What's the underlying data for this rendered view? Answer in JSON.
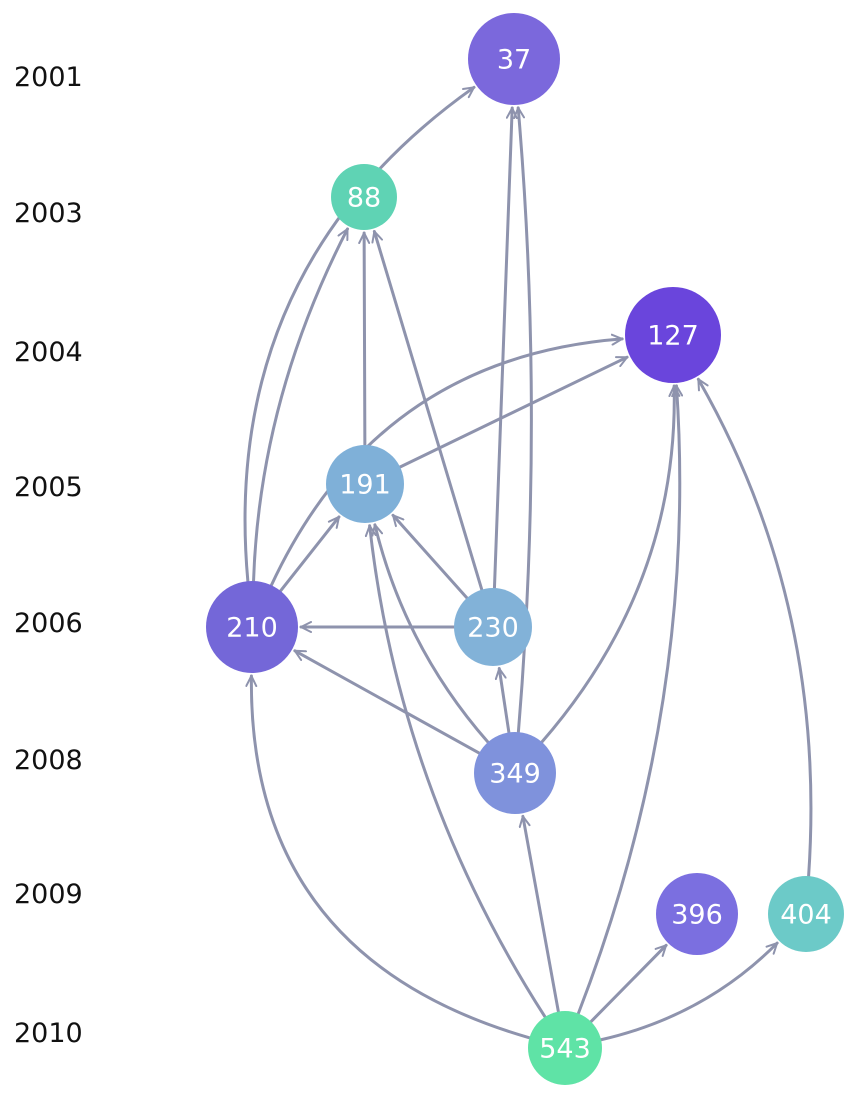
{
  "years": [
    "2001",
    "2003",
    "2004",
    "2005",
    "2006",
    "2008",
    "2009",
    "2010"
  ],
  "nodes": [
    {
      "id": "37",
      "label": "37",
      "year": "2001",
      "color": "#7b68dc"
    },
    {
      "id": "88",
      "label": "88",
      "year": "2003",
      "color": "#5fd3b4"
    },
    {
      "id": "127",
      "label": "127",
      "year": "2004",
      "color": "#6a45dc"
    },
    {
      "id": "191",
      "label": "191",
      "year": "2005",
      "color": "#7fb0d8"
    },
    {
      "id": "210",
      "label": "210",
      "year": "2006",
      "color": "#7467d8"
    },
    {
      "id": "230",
      "label": "230",
      "year": "2006",
      "color": "#82b2d8"
    },
    {
      "id": "349",
      "label": "349",
      "year": "2008",
      "color": "#7f92dc"
    },
    {
      "id": "396",
      "label": "396",
      "year": "2009",
      "color": "#7b6fe0"
    },
    {
      "id": "404",
      "label": "404",
      "year": "2009",
      "color": "#6ccac8"
    },
    {
      "id": "543",
      "label": "543",
      "year": "2010",
      "color": "#5fe3a6"
    }
  ],
  "edges": [
    {
      "from": "210",
      "to": "37"
    },
    {
      "from": "210",
      "to": "88"
    },
    {
      "from": "210",
      "to": "127"
    },
    {
      "from": "210",
      "to": "191"
    },
    {
      "from": "191",
      "to": "88"
    },
    {
      "from": "191",
      "to": "127"
    },
    {
      "from": "230",
      "to": "88"
    },
    {
      "from": "230",
      "to": "37"
    },
    {
      "from": "230",
      "to": "191"
    },
    {
      "from": "230",
      "to": "210"
    },
    {
      "from": "349",
      "to": "37"
    },
    {
      "from": "349",
      "to": "127"
    },
    {
      "from": "349",
      "to": "191"
    },
    {
      "from": "349",
      "to": "210"
    },
    {
      "from": "349",
      "to": "230"
    },
    {
      "from": "404",
      "to": "127"
    },
    {
      "from": "543",
      "to": "210"
    },
    {
      "from": "543",
      "to": "191"
    },
    {
      "from": "543",
      "to": "349"
    },
    {
      "from": "543",
      "to": "127"
    },
    {
      "from": "543",
      "to": "396"
    },
    {
      "from": "543",
      "to": "404"
    }
  ],
  "edge_color": "#8e93ad"
}
